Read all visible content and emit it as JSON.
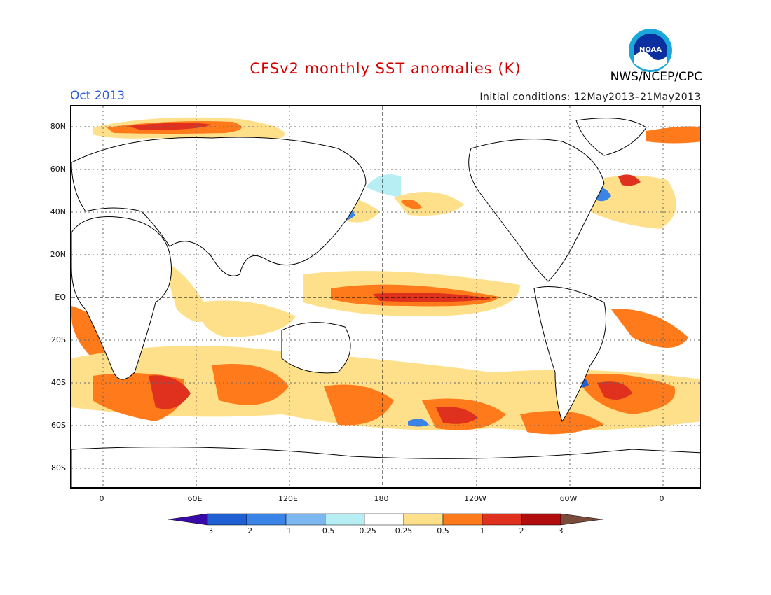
{
  "header": {
    "title": "CFSv2 monthly SST anomalies (K)",
    "date": "Oct 2013",
    "initial_conditions": "Initial conditions: 12May2013–21May2013",
    "agency": "NWS/NCEP/CPC",
    "logo_text": "NOAA"
  },
  "axes": {
    "y_labels": [
      "80N",
      "60N",
      "40N",
      "20N",
      "EQ",
      "20S",
      "40S",
      "60S",
      "80S"
    ],
    "x_labels": [
      "0",
      "60E",
      "120E",
      "180",
      "120W",
      "60W",
      "0"
    ]
  },
  "colorbar": {
    "labels": [
      "−3",
      "−2",
      "−1",
      "−0.5",
      "−0.25",
      "0.25",
      "0.5",
      "1",
      "2",
      "3"
    ],
    "colors": [
      "#3a0aa8",
      "#1f5fd2",
      "#3a84e8",
      "#7db7f0",
      "#b6eef4",
      "#ffffff",
      "#ffe08a",
      "#ff7a1a",
      "#e0301e",
      "#b00e0e",
      "#7a4a3a"
    ]
  },
  "colors": {
    "title": "#d40000",
    "date": "#2a5bd7"
  }
}
